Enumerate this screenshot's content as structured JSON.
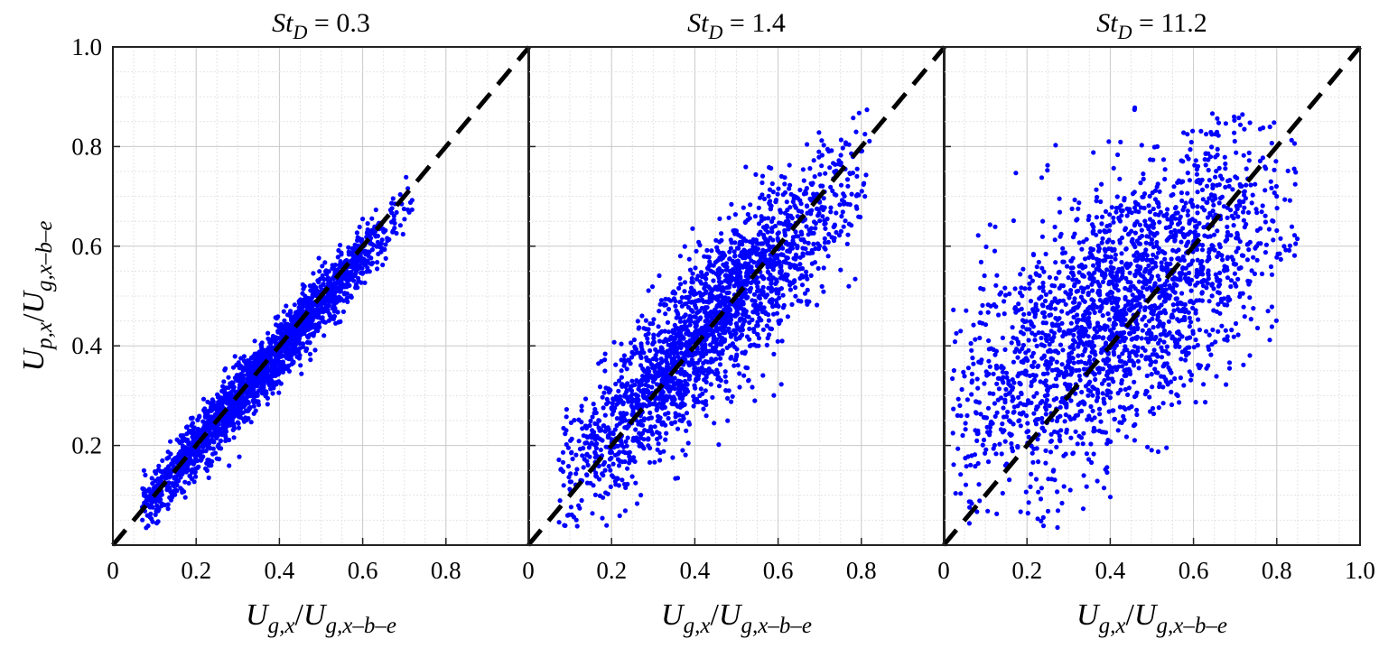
{
  "figure": {
    "panels": [
      {
        "title": {
          "var": "St",
          "sub": "D",
          "rest": " = 0.3"
        }
      },
      {
        "title": {
          "var": "St",
          "sub": "D",
          "rest": " = 1.4"
        }
      },
      {
        "title": {
          "var": "St",
          "sub": "D",
          "rest": " = 11.2"
        }
      }
    ],
    "xlabel": {
      "num_var": "U",
      "num_sub": "g,x",
      "slash": "/",
      "den_var": "U",
      "den_sub": "g,x–b–e"
    },
    "ylabel": {
      "num_var": "U",
      "num_sub": "p,x",
      "slash": "/",
      "den_var": "U",
      "den_sub": "g,x–b–e"
    }
  },
  "chart_data": [
    {
      "type": "scatter",
      "title": "St_D = 0.3",
      "xlabel": "U_g,x/U_g,x–b–e",
      "ylabel": "U_p,x/U_g,x–b–e",
      "xlim": [
        0,
        1.0
      ],
      "ylim": [
        0,
        1.0
      ],
      "xticks": [
        "0",
        "0.2",
        "0.4",
        "0.6",
        "0.8",
        ""
      ],
      "yticks": [
        "",
        "0.2",
        "0.4",
        "0.6",
        "0.8",
        "1.0"
      ],
      "grid": true,
      "marker_color": "#0000ff",
      "cloud": {
        "x_range": [
          0.05,
          0.72
        ],
        "x_center": 0.36,
        "slope": 0.95,
        "intercept": 0.01,
        "spread": 0.03
      },
      "reference_line": {
        "x": [
          0,
          1
        ],
        "y": [
          0,
          1
        ],
        "style": "dashed",
        "color": "#000000"
      }
    },
    {
      "type": "scatter",
      "title": "St_D = 1.4",
      "xlabel": "U_g,x/U_g,x–b–e",
      "ylabel": "",
      "xlim": [
        0,
        1.0
      ],
      "ylim": [
        0,
        1.0
      ],
      "xticks": [
        "0",
        "0.2",
        "0.4",
        "0.6",
        "0.8",
        ""
      ],
      "grid": true,
      "marker_color": "#0000ff",
      "cloud": {
        "x_range": [
          0.05,
          0.82
        ],
        "x_center": 0.42,
        "slope": 0.85,
        "intercept": 0.07,
        "spread": 0.075
      },
      "reference_line": {
        "x": [
          0,
          1
        ],
        "y": [
          0,
          1
        ],
        "style": "dashed",
        "color": "#000000"
      }
    },
    {
      "type": "scatter",
      "title": "St_D = 11.2",
      "xlabel": "U_g,x/U_g,x–b–e",
      "ylabel": "",
      "xlim": [
        0,
        1.0
      ],
      "ylim": [
        0,
        1.0
      ],
      "xticks": [
        "0",
        "0.2",
        "0.4",
        "0.6",
        "0.8",
        "1.0"
      ],
      "grid": true,
      "marker_color": "#0000ff",
      "cloud": {
        "x_range": [
          0.0,
          0.85
        ],
        "x_center": 0.42,
        "slope": 0.55,
        "intercept": 0.24,
        "spread": 0.13
      },
      "reference_line": {
        "x": [
          0,
          1
        ],
        "y": [
          0,
          1
        ],
        "style": "dashed",
        "color": "#000000"
      }
    }
  ]
}
